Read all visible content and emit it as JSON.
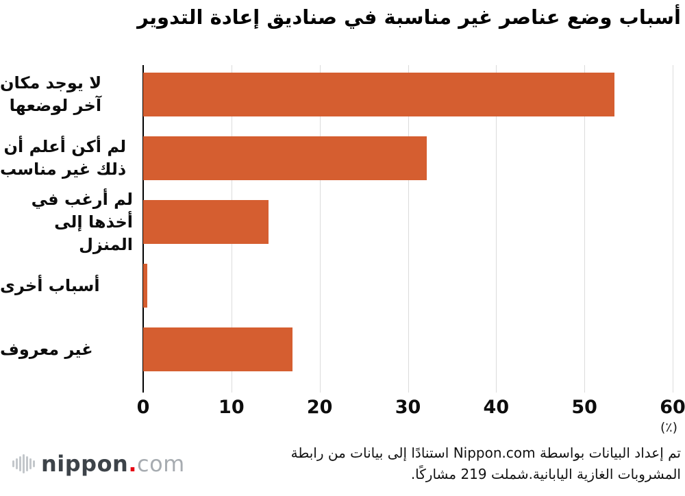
{
  "title": "أسباب وضع عناصر غير مناسبة في صناديق إعادة التدوير",
  "chart_data": {
    "type": "bar",
    "orientation": "horizontal",
    "title": "أسباب وضع عناصر غير مناسبة في صناديق إعادة التدوير",
    "categories": [
      "لا يوجد مكان آخر لوضعها",
      "لم أكن أعلم أن ذلك غير مناسب",
      "لم أرغب في أخذها إلى المنزل",
      "أسباب أخرى",
      "غير معروف"
    ],
    "categories_display": [
      "لا يوجد مكان\nآخر لوضعها",
      "لم أكن أعلم أن\nذلك غير مناسب",
      "لم أرغب في\nأخذها إلى المنزل",
      "أسباب أخرى",
      "غير معروف"
    ],
    "values": [
      53.4,
      32.1,
      14.2,
      0.5,
      16.9
    ],
    "xlabel": "(٪)",
    "ylabel": "",
    "xlim": [
      0,
      60
    ],
    "xmax": 60,
    "ticks": [
      "0",
      "10",
      "20",
      "30",
      "40",
      "50",
      "60"
    ],
    "unit": "(٪)",
    "grid": true,
    "legend": false,
    "bar_color": "#D55E30"
  },
  "colors": {
    "bar": "#D55E30",
    "grid": "#DBDBDB",
    "axis": "#000000",
    "logo_name": "#3D4349",
    "logo_dot": "#E60012",
    "logo_tld": "#A7ACB1"
  },
  "source": {
    "line1": "تم إعداد البيانات بواسطة Nippon.com استنادًا إلى بيانات من رابطة",
    "line2": "المشروبات الغازية اليابانية.شملت 219 مشاركًا."
  },
  "logo": {
    "name": "nippon",
    "dot": ".",
    "tld": "com"
  }
}
